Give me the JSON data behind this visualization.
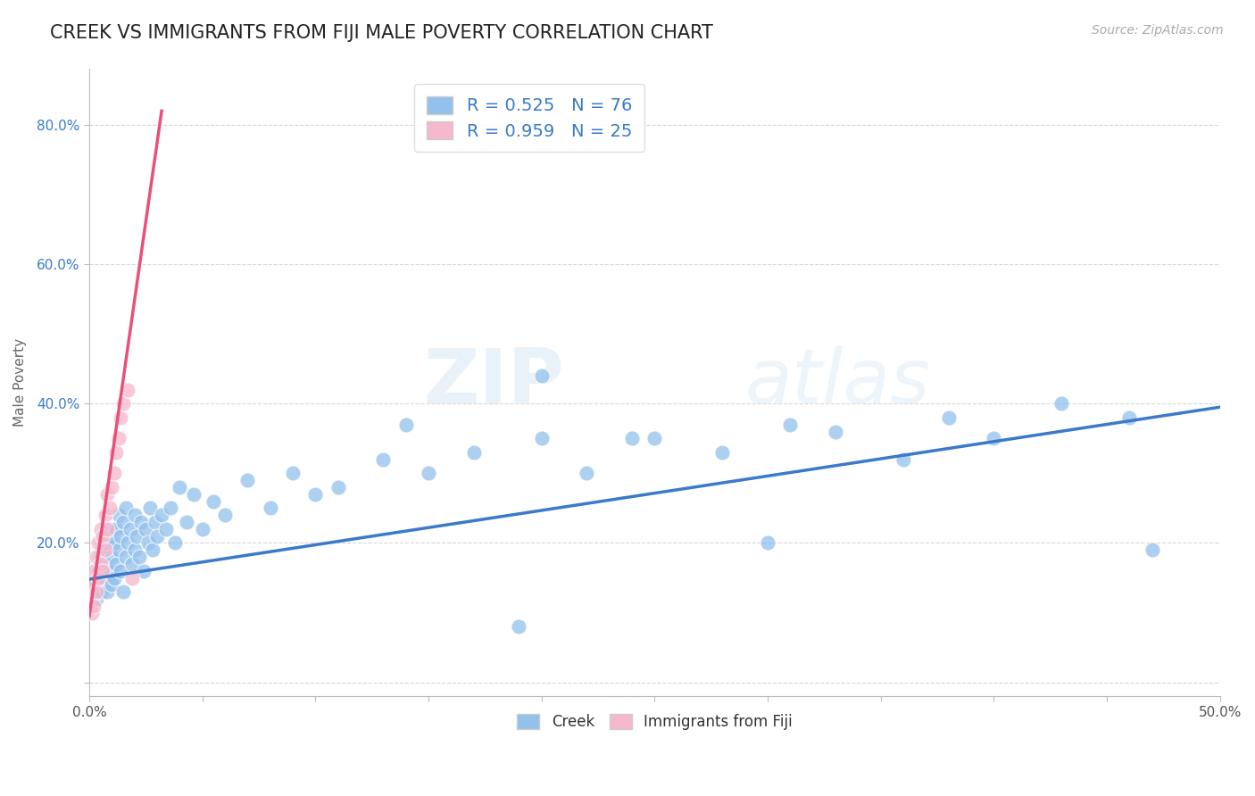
{
  "title": "CREEK VS IMMIGRANTS FROM FIJI MALE POVERTY CORRELATION CHART",
  "source_text": "Source: ZipAtlas.com",
  "ylabel": "Male Poverty",
  "xlim": [
    0.0,
    0.5
  ],
  "ylim": [
    -0.02,
    0.88
  ],
  "xticks": [
    0.0,
    0.05,
    0.1,
    0.15,
    0.2,
    0.25,
    0.3,
    0.35,
    0.4,
    0.45,
    0.5
  ],
  "xticklabels": [
    "0.0%",
    "",
    "",
    "",
    "",
    "",
    "",
    "",
    "",
    "",
    "50.0%"
  ],
  "ytick_positions": [
    0.0,
    0.2,
    0.4,
    0.6,
    0.8
  ],
  "ytick_labels": [
    "",
    "20.0%",
    "40.0%",
    "60.0%",
    "80.0%"
  ],
  "creek_color": "#92C1EC",
  "fiji_color": "#F5B8CC",
  "creek_line_color": "#3A7AC8",
  "fiji_line_color": "#E8507A",
  "R_creek": 0.525,
  "N_creek": 76,
  "R_fiji": 0.959,
  "N_fiji": 25,
  "legend_label_creek": "Creek",
  "legend_label_fiji": "Immigrants from Fiji",
  "watermark_zip": "ZIP",
  "watermark_atlas": "atlas",
  "background_color": "#FFFFFF",
  "grid_color": "#CCCCCC",
  "title_fontsize": 15,
  "axis_label_fontsize": 11,
  "tick_fontsize": 11,
  "legend_fontsize": 14,
  "source_fontsize": 10,
  "creek_line_x0": 0.0,
  "creek_line_y0": 0.148,
  "creek_line_x1": 0.5,
  "creek_line_y1": 0.395,
  "fiji_line_x0": 0.0,
  "fiji_line_y0": 0.095,
  "fiji_line_x1": 0.032,
  "fiji_line_y1": 0.82,
  "creek_scatter_x": [
    0.002,
    0.003,
    0.004,
    0.005,
    0.005,
    0.006,
    0.006,
    0.007,
    0.008,
    0.008,
    0.009,
    0.009,
    0.01,
    0.01,
    0.011,
    0.011,
    0.012,
    0.012,
    0.013,
    0.013,
    0.014,
    0.014,
    0.015,
    0.015,
    0.016,
    0.016,
    0.017,
    0.018,
    0.019,
    0.02,
    0.02,
    0.021,
    0.022,
    0.023,
    0.024,
    0.025,
    0.026,
    0.027,
    0.028,
    0.029,
    0.03,
    0.032,
    0.034,
    0.036,
    0.038,
    0.04,
    0.043,
    0.046,
    0.05,
    0.055,
    0.06,
    0.07,
    0.08,
    0.09,
    0.1,
    0.11,
    0.13,
    0.15,
    0.17,
    0.2,
    0.22,
    0.25,
    0.28,
    0.31,
    0.33,
    0.36,
    0.38,
    0.4,
    0.43,
    0.46,
    0.14,
    0.19,
    0.24,
    0.3,
    0.2,
    0.47
  ],
  "creek_scatter_y": [
    0.14,
    0.12,
    0.16,
    0.13,
    0.18,
    0.15,
    0.19,
    0.17,
    0.13,
    0.2,
    0.16,
    0.22,
    0.14,
    0.18,
    0.2,
    0.15,
    0.17,
    0.22,
    0.19,
    0.24,
    0.16,
    0.21,
    0.13,
    0.23,
    0.18,
    0.25,
    0.2,
    0.22,
    0.17,
    0.19,
    0.24,
    0.21,
    0.18,
    0.23,
    0.16,
    0.22,
    0.2,
    0.25,
    0.19,
    0.23,
    0.21,
    0.24,
    0.22,
    0.25,
    0.2,
    0.28,
    0.23,
    0.27,
    0.22,
    0.26,
    0.24,
    0.29,
    0.25,
    0.3,
    0.27,
    0.28,
    0.32,
    0.3,
    0.33,
    0.35,
    0.3,
    0.35,
    0.33,
    0.37,
    0.36,
    0.32,
    0.38,
    0.35,
    0.4,
    0.38,
    0.37,
    0.08,
    0.35,
    0.2,
    0.44,
    0.19
  ],
  "fiji_scatter_x": [
    0.001,
    0.001,
    0.002,
    0.002,
    0.003,
    0.003,
    0.004,
    0.004,
    0.005,
    0.005,
    0.006,
    0.006,
    0.007,
    0.007,
    0.008,
    0.008,
    0.009,
    0.01,
    0.011,
    0.012,
    0.013,
    0.014,
    0.015,
    0.017,
    0.019
  ],
  "fiji_scatter_y": [
    0.1,
    0.14,
    0.11,
    0.16,
    0.13,
    0.18,
    0.15,
    0.2,
    0.17,
    0.22,
    0.16,
    0.21,
    0.19,
    0.24,
    0.22,
    0.27,
    0.25,
    0.28,
    0.3,
    0.33,
    0.35,
    0.38,
    0.4,
    0.42,
    0.15
  ]
}
